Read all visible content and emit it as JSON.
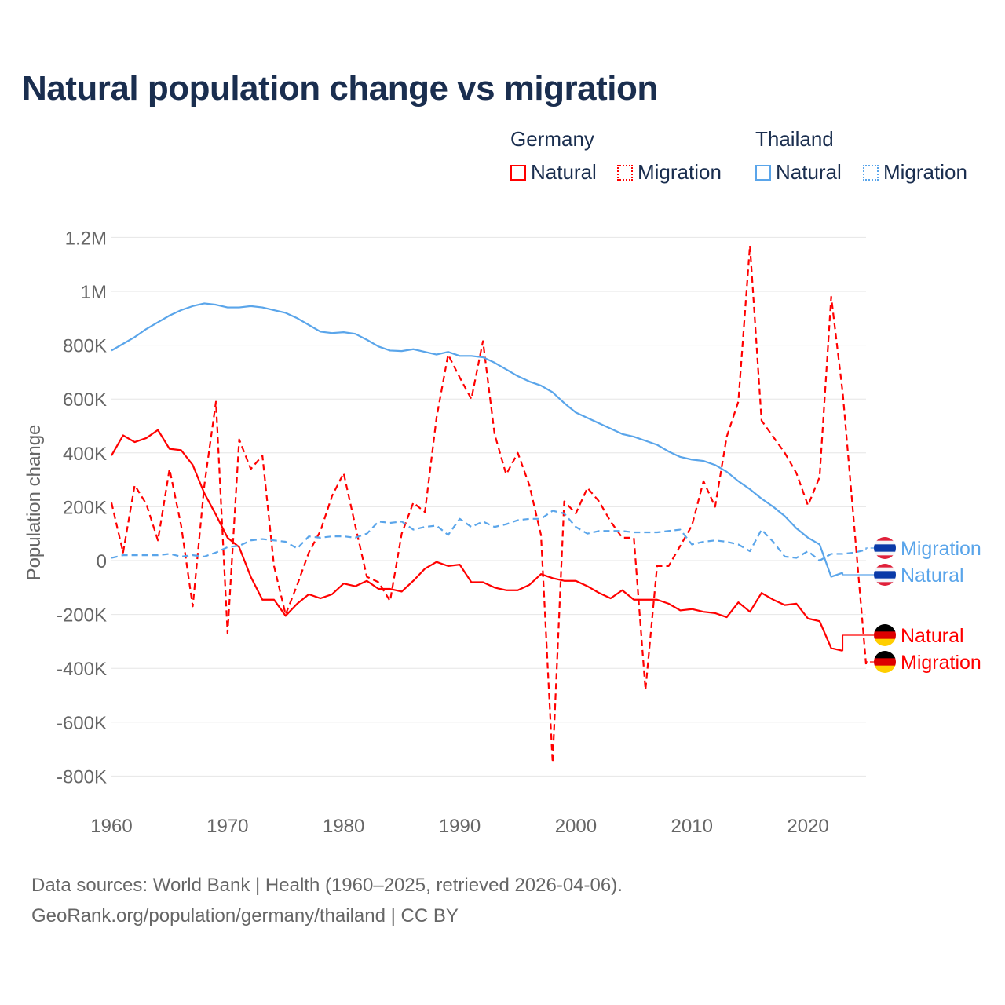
{
  "title": "Natural population change vs migration",
  "legend": {
    "groups": [
      {
        "name": "Germany",
        "items": [
          {
            "label": "Natural",
            "style": "solid"
          },
          {
            "label": "Migration",
            "style": "dotted"
          }
        ],
        "color": "#ff0000"
      },
      {
        "name": "Thailand",
        "items": [
          {
            "label": "Natural",
            "style": "solid"
          },
          {
            "label": "Migration",
            "style": "dotted"
          }
        ],
        "color": "#5aa5ea"
      }
    ]
  },
  "footer": {
    "line1": "Data sources: World Bank | Health (1960–2025, retrieved 2026-04-06).",
    "line2": "GeoRank.org/population/germany/thailand | CC BY"
  },
  "chart_data": {
    "type": "line",
    "title": "Natural population change vs migration",
    "xlabel": "",
    "ylabel": "Population change",
    "xlim": [
      1960,
      2025
    ],
    "ylim": [
      -800000,
      1200000
    ],
    "grid": true,
    "legend_position": "top-right",
    "x_ticks": [
      1960,
      1970,
      1980,
      1990,
      2000,
      2010,
      2020
    ],
    "x_tick_labels": [
      "1960",
      "1970",
      "1980",
      "1990",
      "2000",
      "2010",
      "2020"
    ],
    "y_ticks": [
      1200000,
      1000000,
      800000,
      600000,
      400000,
      200000,
      0,
      -200000,
      -400000,
      -600000,
      -800000
    ],
    "y_tick_labels": [
      "1.2M",
      "1M",
      "800K",
      "600K",
      "400K",
      "200K",
      "0",
      "-200K",
      "-400K",
      "-600K",
      "-800K"
    ],
    "start_year": 1960,
    "series": [
      {
        "name": "Germany Natural",
        "end_label": "Natural",
        "country": "germany",
        "color": "#ff0000",
        "dash": false,
        "values_k": [
          390,
          465,
          440,
          455,
          485,
          415,
          410,
          355,
          250,
          170,
          85,
          50,
          -60,
          -145,
          -145,
          -205,
          -160,
          -125,
          -140,
          -125,
          -85,
          -95,
          -75,
          -105,
          -105,
          -115,
          -75,
          -30,
          -5,
          -20,
          -15,
          -80,
          -80,
          -100,
          -110,
          -110,
          -90,
          -50,
          -65,
          -75,
          -75,
          -95,
          -120,
          -140,
          -110,
          -145,
          -145,
          -145,
          -160,
          -185,
          -180,
          -190,
          -195,
          -210,
          -155,
          -190,
          -120,
          -145,
          -165,
          -160,
          -215,
          -225,
          -325,
          -335
        ]
      },
      {
        "name": "Germany Migration",
        "end_label": "Migration",
        "country": "germany",
        "color": "#ff0000",
        "dash": true,
        "values_k": [
          215,
          30,
          280,
          210,
          75,
          340,
          130,
          -170,
          280,
          590,
          -270,
          450,
          340,
          390,
          -20,
          -200,
          -90,
          30,
          110,
          240,
          325,
          130,
          -60,
          -80,
          -150,
          100,
          215,
          180,
          530,
          765,
          680,
          600,
          815,
          470,
          320,
          400,
          280,
          95,
          -750,
          220,
          175,
          270,
          220,
          145,
          85,
          85,
          -480,
          -20,
          -20,
          55,
          130,
          295,
          200,
          460,
          590,
          1170,
          520,
          460,
          400,
          325,
          205,
          310,
          980,
          620,
          120,
          -385
        ]
      },
      {
        "name": "Thailand Natural",
        "end_label": "Natural",
        "country": "thailand",
        "color": "#5aa5ea",
        "dash": false,
        "values_k": [
          780,
          805,
          830,
          860,
          885,
          910,
          930,
          945,
          955,
          950,
          940,
          940,
          945,
          940,
          930,
          920,
          900,
          875,
          850,
          845,
          848,
          842,
          820,
          795,
          780,
          778,
          785,
          775,
          765,
          775,
          760,
          760,
          755,
          735,
          710,
          685,
          665,
          650,
          625,
          585,
          550,
          530,
          510,
          490,
          470,
          460,
          445,
          430,
          405,
          385,
          375,
          370,
          355,
          330,
          295,
          265,
          230,
          200,
          165,
          120,
          85,
          60,
          -60,
          -45
        ]
      },
      {
        "name": "Thailand Migration",
        "end_label": "Migration",
        "country": "thailand",
        "color": "#5aa5ea",
        "dash": true,
        "values_k": [
          10,
          20,
          20,
          20,
          20,
          25,
          15,
          20,
          15,
          30,
          50,
          55,
          75,
          80,
          75,
          70,
          45,
          90,
          85,
          90,
          90,
          85,
          100,
          145,
          140,
          145,
          115,
          125,
          130,
          95,
          155,
          125,
          145,
          125,
          135,
          150,
          155,
          155,
          185,
          175,
          125,
          100,
          110,
          110,
          110,
          105,
          105,
          105,
          110,
          115,
          60,
          70,
          75,
          70,
          60,
          35,
          115,
          70,
          15,
          10,
          35,
          0,
          25,
          25,
          30,
          40
        ]
      }
    ]
  }
}
